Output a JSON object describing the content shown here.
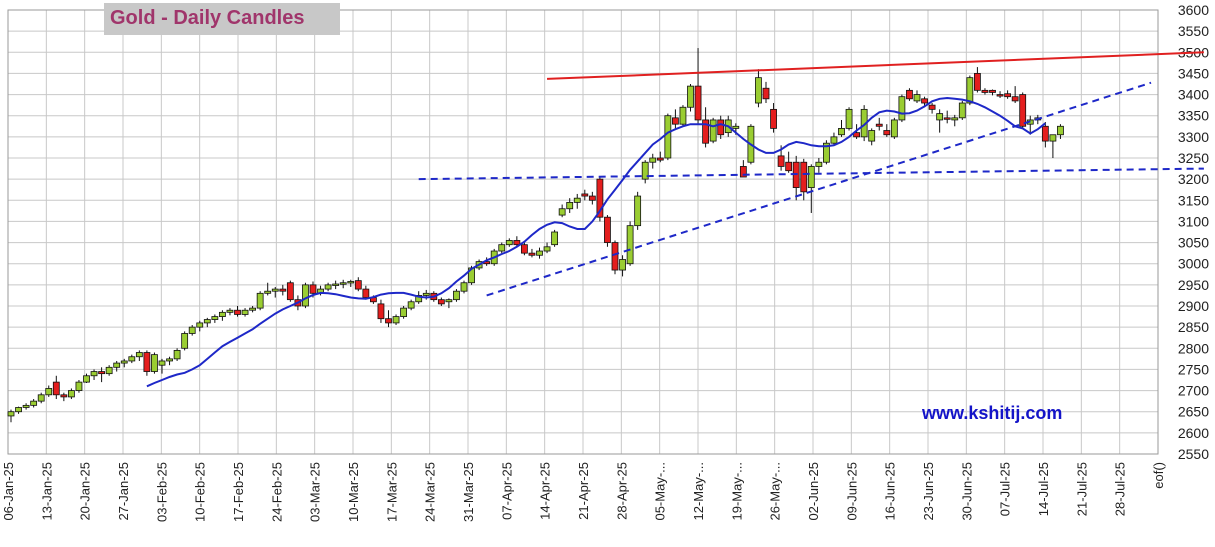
{
  "header": {
    "title": "Gold - Daily Candles"
  },
  "watermark": "www.kshitij.com",
  "chart_data": {
    "type": "candlestick",
    "title": "Gold - Daily Candles",
    "ylim": [
      2550,
      3600
    ],
    "y_ticks": [
      2550,
      2600,
      2650,
      2700,
      2750,
      2800,
      2850,
      2900,
      2950,
      3000,
      3050,
      3100,
      3150,
      3200,
      3250,
      3300,
      3350,
      3400,
      3450,
      3500,
      3550,
      3600
    ],
    "x_ticks": [
      "06-Jan-25",
      "13-Jan-25",
      "20-Jan-25",
      "27-Jan-25",
      "03-Feb-25",
      "10-Feb-25",
      "17-Feb-25",
      "24-Feb-25",
      "03-Mar-25",
      "10-Mar-25",
      "17-Mar-25",
      "24-Mar-25",
      "31-Mar-25",
      "07-Apr-25",
      "14-Apr-25",
      "21-Apr-25",
      "28-Apr-25",
      "05-May-...",
      "12-May-...",
      "19-May-...",
      "26-May-...",
      "02-Jun-25",
      "09-Jun-25",
      "16-Jun-25",
      "23-Jun-25",
      "30-Jun-25",
      "07-Jul-25",
      "14-Jul-25",
      "21-Jul-25",
      "28-Jul-25",
      "eof()"
    ],
    "grid": true,
    "y_axis_side": "right",
    "colors": {
      "up": "#9acd32",
      "down": "#e41e1e",
      "moving_average": "#1e28c8",
      "resistance": "#e02020",
      "support": "#1e28c8",
      "grid": "#c8c8c8"
    },
    "ohlc": [
      [
        2640,
        2655,
        2625,
        2650
      ],
      [
        2650,
        2662,
        2645,
        2660
      ],
      [
        2660,
        2670,
        2655,
        2665
      ],
      [
        2665,
        2680,
        2660,
        2675
      ],
      [
        2675,
        2695,
        2670,
        2690
      ],
      [
        2690,
        2712,
        2685,
        2705
      ],
      [
        2720,
        2735,
        2680,
        2690
      ],
      [
        2690,
        2695,
        2675,
        2685
      ],
      [
        2685,
        2705,
        2680,
        2700
      ],
      [
        2700,
        2725,
        2695,
        2720
      ],
      [
        2720,
        2740,
        2718,
        2735
      ],
      [
        2735,
        2750,
        2725,
        2745
      ],
      [
        2745,
        2755,
        2720,
        2740
      ],
      [
        2740,
        2760,
        2735,
        2755
      ],
      [
        2755,
        2770,
        2745,
        2765
      ],
      [
        2765,
        2775,
        2755,
        2770
      ],
      [
        2770,
        2785,
        2765,
        2780
      ],
      [
        2780,
        2795,
        2770,
        2790
      ],
      [
        2790,
        2795,
        2735,
        2745
      ],
      [
        2745,
        2790,
        2740,
        2785
      ],
      [
        2760,
        2775,
        2740,
        2770
      ],
      [
        2770,
        2780,
        2760,
        2775
      ],
      [
        2775,
        2800,
        2770,
        2795
      ],
      [
        2800,
        2840,
        2795,
        2835
      ],
      [
        2835,
        2855,
        2830,
        2850
      ],
      [
        2850,
        2865,
        2840,
        2860
      ],
      [
        2860,
        2872,
        2850,
        2868
      ],
      [
        2868,
        2880,
        2860,
        2875
      ],
      [
        2875,
        2890,
        2865,
        2885
      ],
      [
        2885,
        2895,
        2878,
        2890
      ],
      [
        2890,
        2900,
        2875,
        2880
      ],
      [
        2880,
        2895,
        2875,
        2890
      ],
      [
        2890,
        2900,
        2885,
        2895
      ],
      [
        2895,
        2935,
        2890,
        2930
      ],
      [
        2930,
        2955,
        2925,
        2935
      ],
      [
        2935,
        2945,
        2920,
        2940
      ],
      [
        2940,
        2950,
        2925,
        2935
      ],
      [
        2955,
        2960,
        2910,
        2915
      ],
      [
        2915,
        2925,
        2890,
        2900
      ],
      [
        2900,
        2955,
        2895,
        2950
      ],
      [
        2950,
        2958,
        2920,
        2930
      ],
      [
        2930,
        2948,
        2925,
        2940
      ],
      [
        2940,
        2955,
        2935,
        2950
      ],
      [
        2950,
        2960,
        2940,
        2952
      ],
      [
        2952,
        2962,
        2942,
        2955
      ],
      [
        2955,
        2962,
        2945,
        2958
      ],
      [
        2960,
        2968,
        2935,
        2940
      ],
      [
        2940,
        2948,
        2915,
        2920
      ],
      [
        2920,
        2925,
        2905,
        2910
      ],
      [
        2905,
        2915,
        2860,
        2870
      ],
      [
        2870,
        2890,
        2850,
        2860
      ],
      [
        2860,
        2880,
        2855,
        2875
      ],
      [
        2875,
        2900,
        2870,
        2895
      ],
      [
        2895,
        2915,
        2890,
        2910
      ],
      [
        2910,
        2935,
        2905,
        2925
      ],
      [
        2925,
        2938,
        2915,
        2930
      ],
      [
        2930,
        2935,
        2910,
        2915
      ],
      [
        2915,
        2920,
        2900,
        2905
      ],
      [
        2910,
        2918,
        2895,
        2915
      ],
      [
        2915,
        2940,
        2910,
        2935
      ],
      [
        2935,
        2960,
        2930,
        2955
      ],
      [
        2955,
        2995,
        2950,
        2990
      ],
      [
        2990,
        3010,
        2985,
        3005
      ],
      [
        3005,
        3015,
        2995,
        3000
      ],
      [
        3000,
        3035,
        2995,
        3030
      ],
      [
        3030,
        3050,
        3025,
        3045
      ],
      [
        3045,
        3060,
        3040,
        3055
      ],
      [
        3055,
        3065,
        3040,
        3045
      ],
      [
        3045,
        3050,
        3020,
        3025
      ],
      [
        3025,
        3035,
        3015,
        3020
      ],
      [
        3020,
        3038,
        3012,
        3030
      ],
      [
        3030,
        3050,
        3025,
        3040
      ],
      [
        3045,
        3080,
        3040,
        3075
      ],
      [
        3115,
        3140,
        3110,
        3130
      ],
      [
        3130,
        3155,
        3120,
        3145
      ],
      [
        3145,
        3165,
        3130,
        3155
      ],
      [
        3165,
        3175,
        3150,
        3160
      ],
      [
        3160,
        3170,
        3140,
        3150
      ],
      [
        3200,
        3205,
        3100,
        3110
      ],
      [
        3110,
        3115,
        3040,
        3050
      ],
      [
        3050,
        3055,
        2975,
        2985
      ],
      [
        2985,
        3020,
        2970,
        3010
      ],
      [
        3000,
        3100,
        2995,
        3090
      ],
      [
        3090,
        3170,
        3080,
        3160
      ],
      [
        3200,
        3245,
        3190,
        3240
      ],
      [
        3240,
        3260,
        3225,
        3250
      ],
      [
        3250,
        3265,
        3240,
        3245
      ],
      [
        3250,
        3355,
        3245,
        3350
      ],
      [
        3345,
        3365,
        3320,
        3330
      ],
      [
        3330,
        3375,
        3325,
        3370
      ],
      [
        3370,
        3425,
        3360,
        3420
      ],
      [
        3420,
        3510,
        3330,
        3340
      ],
      [
        3340,
        3370,
        3275,
        3285
      ],
      [
        3290,
        3345,
        3285,
        3340
      ],
      [
        3340,
        3350,
        3295,
        3305
      ],
      [
        3310,
        3350,
        3300,
        3340
      ],
      [
        3320,
        3332,
        3305,
        3325
      ],
      [
        3230,
        3245,
        3205,
        3205
      ],
      [
        3240,
        3330,
        3235,
        3325
      ],
      [
        3380,
        3460,
        3370,
        3440
      ],
      [
        3415,
        3430,
        3380,
        3390
      ],
      [
        3365,
        3380,
        3310,
        3320
      ],
      [
        3255,
        3280,
        3220,
        3230
      ],
      [
        3240,
        3265,
        3215,
        3220
      ],
      [
        3240,
        3255,
        3150,
        3180
      ],
      [
        3240,
        3248,
        3150,
        3170
      ],
      [
        3180,
        3235,
        3120,
        3230
      ],
      [
        3230,
        3250,
        3215,
        3240
      ],
      [
        3240,
        3292,
        3235,
        3285
      ],
      [
        3285,
        3310,
        3280,
        3300
      ],
      [
        3305,
        3340,
        3300,
        3320
      ],
      [
        3320,
        3370,
        3315,
        3365
      ],
      [
        3310,
        3330,
        3295,
        3300
      ],
      [
        3300,
        3375,
        3290,
        3365
      ],
      [
        3290,
        3320,
        3280,
        3315
      ],
      [
        3330,
        3345,
        3315,
        3325
      ],
      [
        3315,
        3330,
        3300,
        3305
      ],
      [
        3300,
        3345,
        3295,
        3340
      ],
      [
        3340,
        3400,
        3335,
        3395
      ],
      [
        3410,
        3415,
        3385,
        3390
      ],
      [
        3385,
        3410,
        3380,
        3400
      ],
      [
        3390,
        3395,
        3370,
        3380
      ],
      [
        3375,
        3380,
        3355,
        3365
      ],
      [
        3340,
        3365,
        3310,
        3355
      ],
      [
        3345,
        3362,
        3332,
        3342
      ],
      [
        3340,
        3352,
        3325,
        3345
      ],
      [
        3345,
        3385,
        3340,
        3380
      ],
      [
        3380,
        3445,
        3375,
        3440
      ],
      [
        3450,
        3465,
        3405,
        3410
      ],
      [
        3410,
        3415,
        3400,
        3405
      ],
      [
        3410,
        3412,
        3398,
        3405
      ],
      [
        3400,
        3408,
        3392,
        3398
      ],
      [
        3402,
        3410,
        3390,
        3395
      ],
      [
        3395,
        3420,
        3380,
        3385
      ],
      [
        3400,
        3405,
        3320,
        3325
      ],
      [
        3330,
        3350,
        3305,
        3340
      ],
      [
        3340,
        3352,
        3330,
        3345
      ],
      [
        3325,
        3335,
        3275,
        3290
      ],
      [
        3290,
        3305,
        3250,
        3305
      ],
      [
        3305,
        3330,
        3295,
        3325
      ]
    ],
    "moving_average": {
      "start_index": 18,
      "values": [
        2710,
        2718,
        2725,
        2732,
        2738,
        2742,
        2750,
        2760,
        2775,
        2790,
        2805,
        2815,
        2825,
        2835,
        2845,
        2858,
        2870,
        2882,
        2892,
        2900,
        2908,
        2918,
        2926,
        2931,
        2930,
        2928,
        2924,
        2920,
        2918,
        2917,
        2921,
        2927,
        2930,
        2931,
        2931,
        2927,
        2922,
        2920,
        2922,
        2930,
        2942,
        2958,
        2972,
        2988,
        2998,
        3008,
        3015,
        3023,
        3030,
        3040,
        3052,
        3068,
        3082,
        3092,
        3098,
        3096,
        3088,
        3082,
        3082,
        3100,
        3125,
        3152,
        3175,
        3198,
        3222,
        3242,
        3262,
        3282,
        3295,
        3310,
        3318,
        3325,
        3330,
        3330,
        3330,
        3325,
        3330,
        3325,
        3310,
        3295,
        3282,
        3270,
        3262,
        3262,
        3270,
        3282,
        3288,
        3285,
        3280,
        3278,
        3278,
        3280,
        3288,
        3300,
        3315,
        3328,
        3345,
        3358,
        3362,
        3360,
        3355,
        3356,
        3362,
        3372,
        3384,
        3390,
        3392,
        3390,
        3388,
        3384,
        3378,
        3370,
        3360,
        3350,
        3338,
        3325,
        3320,
        3308,
        3318,
        3332
      ]
    },
    "lines": [
      {
        "name": "resistance",
        "style": "solid",
        "from": [
          71,
          3437
        ],
        "to": [
          158,
          3500
        ]
      },
      {
        "name": "rising support",
        "style": "dashed",
        "from": [
          63,
          2925
        ],
        "to": [
          151,
          3428
        ]
      },
      {
        "name": "horizontal support",
        "style": "dashed",
        "from": [
          54,
          3200
        ],
        "to": [
          158,
          3225
        ]
      }
    ]
  }
}
